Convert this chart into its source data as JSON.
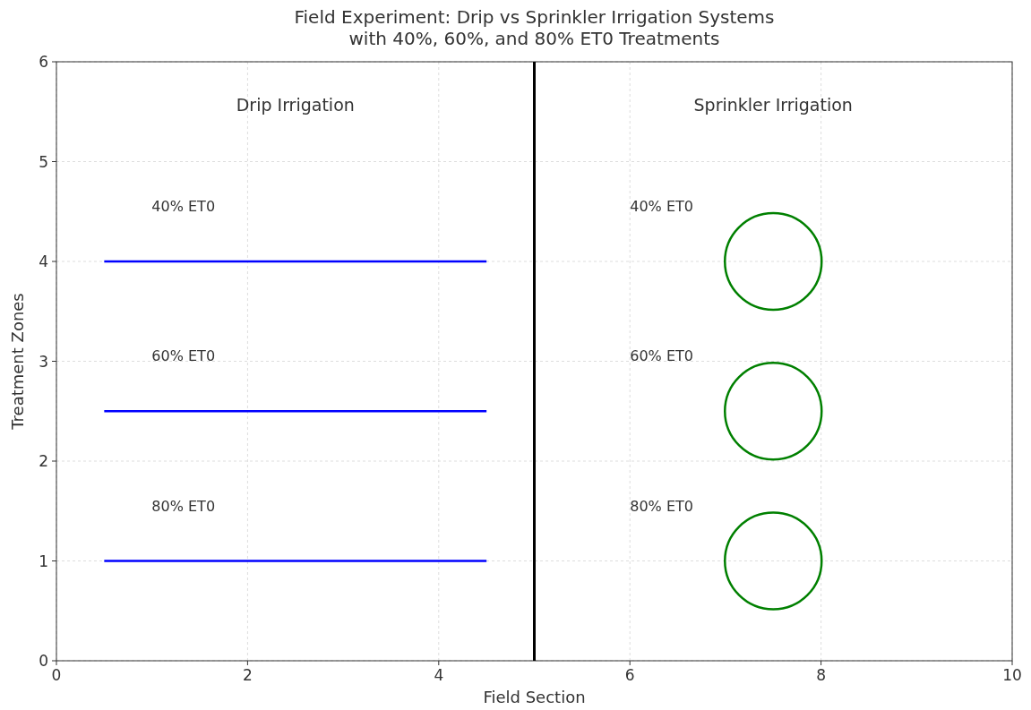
{
  "chart_data": {
    "type": "line",
    "title": "Field Experiment: Drip vs Sprinkler Irrigation Systems\nwith 40%, 60%, and 80% ET0 Treatments",
    "xlabel": "Field Section",
    "ylabel": "Treatment Zones",
    "xlim": [
      0,
      10
    ],
    "ylim": [
      0,
      6
    ],
    "xticks": [
      0,
      2,
      4,
      6,
      8,
      10
    ],
    "yticks": [
      0,
      1,
      2,
      3,
      4,
      5,
      6
    ],
    "grid": true,
    "series": [
      {
        "color": "#0000ff",
        "x": [
          0.5,
          4.5
        ],
        "values": [
          4,
          4
        ]
      },
      {
        "color": "#0000ff",
        "x": [
          0.5,
          4.5
        ],
        "values": [
          2.5,
          2.5
        ]
      },
      {
        "color": "#0000ff",
        "x": [
          0.5,
          4.5
        ],
        "values": [
          1,
          1
        ]
      },
      {
        "type": "bubble",
        "color": "#008000",
        "x": [
          7.5,
          7.5,
          7.5
        ],
        "values": [
          4,
          2.5,
          1
        ],
        "sizes": [
          1,
          1,
          1
        ]
      }
    ],
    "ref_lines": [
      {
        "axis": "x",
        "value": 5,
        "color": "#000000"
      }
    ],
    "annotations": [
      "Drip Irrigation",
      "Sprinkler Irrigation",
      "40% ET0",
      "60% ET0",
      "80% ET0",
      "40% ET0",
      "60% ET0",
      "80% ET0"
    ]
  }
}
